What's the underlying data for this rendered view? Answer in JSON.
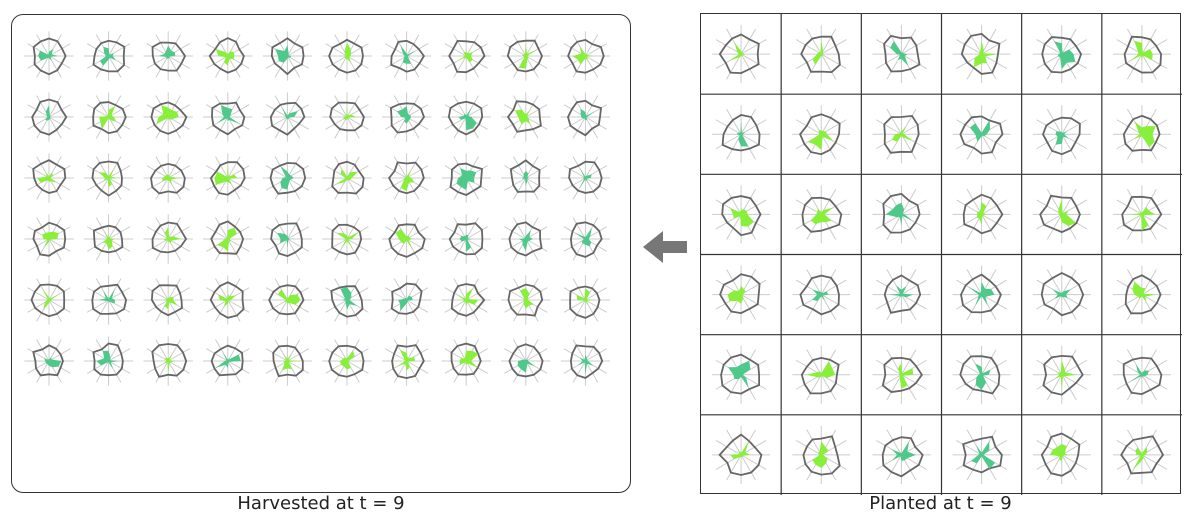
{
  "harvested": {
    "caption": "Harvested at t = 9",
    "rows": 6,
    "cols": 10
  },
  "planted": {
    "caption": "Planted at t = 9",
    "rows": 6,
    "cols": 6
  },
  "arrow_direction": "left",
  "colors": {
    "glyph_outline": "#666666",
    "spoke": "#cccccc",
    "fill_light": "#88f03a",
    "fill_dark": "#4fc98a",
    "border": "#333333",
    "arrow": "#777777"
  },
  "glyph_icon": "radar-glyph"
}
